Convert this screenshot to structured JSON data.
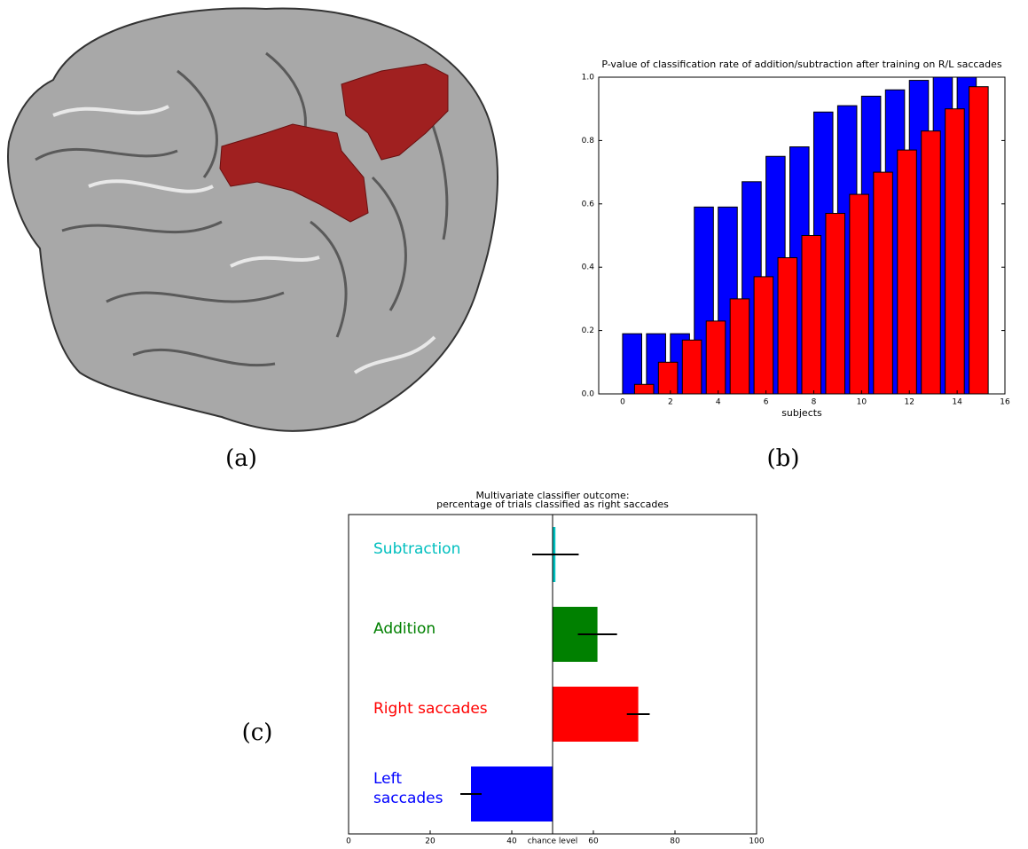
{
  "panel_labels": [
    "(a)",
    "(b)",
    "(c)"
  ],
  "chart_data": [
    {
      "type": "bar",
      "title": "P-value of classification rate of addition/subtraction after training on R/L saccades",
      "xlabel": "subjects",
      "x": [
        0,
        1,
        2,
        3,
        4,
        5,
        6,
        7,
        8,
        9,
        10,
        11,
        12,
        13,
        14
      ],
      "series": [
        {
          "color": "#0000ff",
          "values": [
            0.19,
            0.19,
            0.19,
            0.59,
            0.59,
            0.67,
            0.75,
            0.78,
            0.89,
            0.91,
            0.94,
            0.96,
            0.99,
            1.0,
            1.0
          ]
        },
        {
          "color": "#ff0000",
          "values": [
            0.03,
            0.1,
            0.17,
            0.23,
            0.3,
            0.37,
            0.43,
            0.5,
            0.57,
            0.63,
            0.7,
            0.77,
            0.83,
            0.9,
            0.97
          ]
        }
      ],
      "xlim": [
        -1,
        16
      ],
      "xticks": [
        0,
        2,
        4,
        6,
        8,
        10,
        12,
        14,
        16
      ],
      "ylim": [
        0,
        1
      ],
      "yticks": [
        {
          "value": 0,
          "label": "0.0"
        },
        0.2,
        0.4,
        0.6,
        0.8,
        {
          "value": 1,
          "label": "1.0"
        }
      ]
    },
    {
      "type": "hbar",
      "title": "Multivariate classifier outcome:",
      "subtitle": "percentage of trials classified as right saccades",
      "categories": [
        "Subtraction",
        "Addition",
        "Right saccades",
        "Left\nsaccades"
      ],
      "values": [
        50.7,
        61,
        71,
        30
      ],
      "errors": [
        5.7,
        4.8,
        2.8,
        2.6
      ],
      "colors": [
        "#00bfbf",
        "#008000",
        "#ff0000",
        "#0000ff"
      ],
      "baseline": 50,
      "xlim": [
        0,
        100
      ],
      "xticks": [
        0,
        20,
        40,
        {
          "value": 50,
          "label": "chance level"
        },
        60,
        80,
        100
      ]
    }
  ]
}
